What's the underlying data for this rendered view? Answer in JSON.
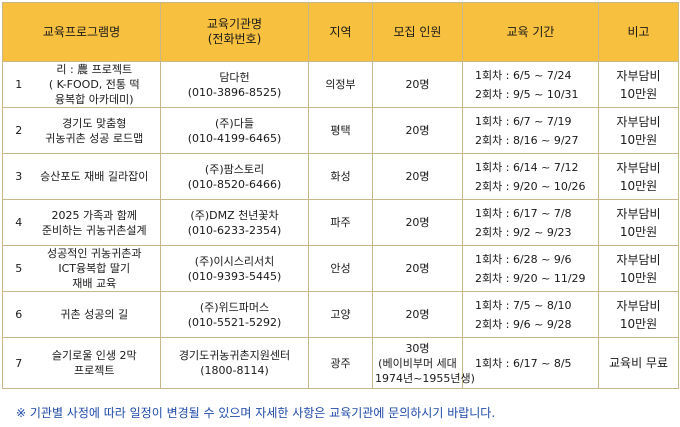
{
  "headers": {
    "program": "교육프로그램명",
    "org_line1": "교육기관명",
    "org_line2": "(전화번호)",
    "region": "지역",
    "recruit": "모집 인원",
    "period": "교육 기간",
    "note": "비고"
  },
  "rows": [
    {
      "no": "1",
      "name": [
        "리 : 農 프로젝트",
        "( K-FOOD, 전통 떡",
        "융복합 아카데미)"
      ],
      "org": [
        "담다헌",
        "(010-3896-8525)"
      ],
      "region": "의정부",
      "recruit": [
        "20명"
      ],
      "period": [
        "1회차 : 6/5 ~ 7/24",
        "2회차 : 9/5 ~ 10/31"
      ],
      "note": [
        "자부담비",
        "10만원"
      ]
    },
    {
      "no": "2",
      "name": [
        "경기도 맞춤형",
        "귀농귀촌 성공 로드맵"
      ],
      "org": [
        "(주)다들",
        "(010-4199-6465)"
      ],
      "region": "평택",
      "recruit": [
        "20명"
      ],
      "period": [
        "1회차 : 6/7 ~ 7/19",
        "2회차 : 8/16 ~ 9/27"
      ],
      "note": [
        "자부담비",
        "10만원"
      ]
    },
    {
      "no": "3",
      "name": [
        "승산포도 재배 길라잡이"
      ],
      "org": [
        "(주)팜스토리",
        "(010-8520-6466)"
      ],
      "region": "화성",
      "recruit": [
        "20명"
      ],
      "period": [
        "1회차 : 6/14 ~ 7/12",
        "2회차 : 9/20 ~ 10/26"
      ],
      "note": [
        "자부담비",
        "10만원"
      ]
    },
    {
      "no": "4",
      "name": [
        "2025 가족과 함께",
        "준비하는 귀농귀촌설계"
      ],
      "org": [
        "(주)DMZ 천년꽃차",
        "(010-6233-2354)"
      ],
      "region": "파주",
      "recruit": [
        "20명"
      ],
      "period": [
        "1회차 : 6/17 ~ 7/8",
        "2회차 : 9/2 ~ 9/23"
      ],
      "note": [
        "자부담비",
        "10만원"
      ]
    },
    {
      "no": "5",
      "name": [
        "성공적인 귀농귀촌과",
        "ICT융복합 딸기",
        "재배 교육"
      ],
      "org": [
        "(주)이시스리서치",
        "(010-9393-5445)"
      ],
      "region": "안성",
      "recruit": [
        "20명"
      ],
      "period": [
        "1회차 : 6/28 ~ 9/6",
        "2회차 : 9/20 ~ 11/29"
      ],
      "note": [
        "자부담비",
        "10만원"
      ]
    },
    {
      "no": "6",
      "name": [
        "귀촌 성공의 길"
      ],
      "org": [
        "(주)위드파머스",
        "(010-5521-5292)"
      ],
      "region": "고양",
      "recruit": [
        "20명"
      ],
      "period": [
        "1회차 : 7/5 ~ 8/10",
        "2회차 : 9/6 ~ 9/28"
      ],
      "note": [
        "자부담비",
        "10만원"
      ]
    },
    {
      "no": "7",
      "name": [
        "슬기로울 인생 2막",
        "프로젝트"
      ],
      "org": [
        "경기도귀농귀촌지원센터",
        "(1800-8114)"
      ],
      "region": "광주",
      "recruit": [
        "30명",
        "(베이비부머 세대",
        "1974년~1955년생)"
      ],
      "period": [
        "1회차 : 6/17 ~ 8/5"
      ],
      "note": [
        "교육비 무료"
      ]
    }
  ],
  "footnote": "※ 기관별 사정에 따라 일정이 변경될 수 있으며 자세한 사항은 교육기관에 문의하시기 바랍니다."
}
